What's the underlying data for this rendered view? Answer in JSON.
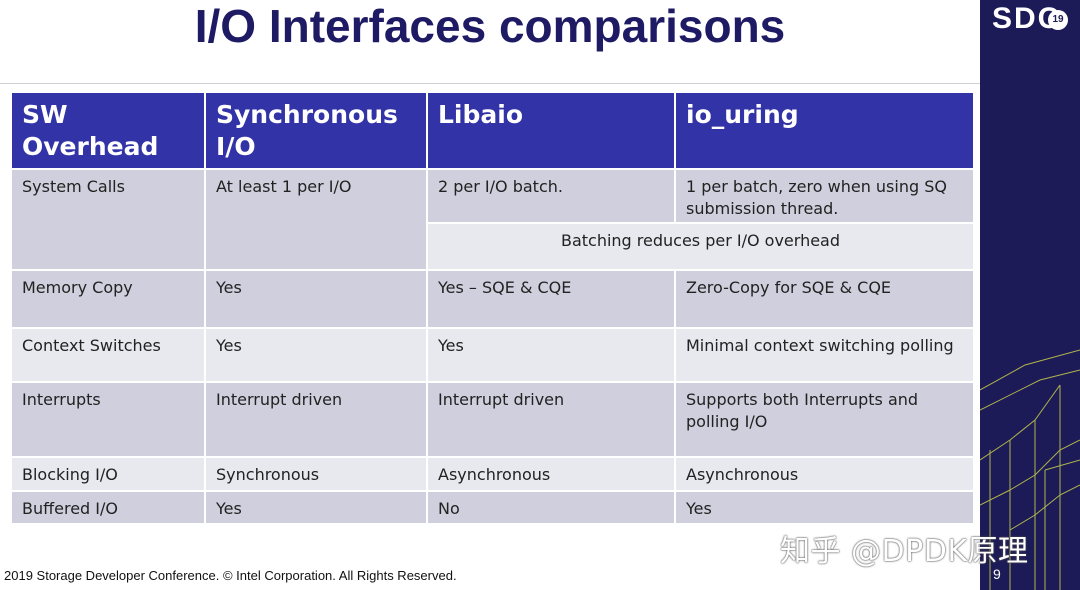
{
  "slide": {
    "title": "I/O Interfaces comparisons",
    "footer": "2019 Storage Developer Conference. © Intel Corporation.  All Rights Reserved.",
    "page_number": "9",
    "logo_text": "SDC",
    "logo_badge": "19",
    "watermark": "知乎 @DPDK原理"
  },
  "colors": {
    "title": "#1e1a63",
    "header_bg": "#3333a8",
    "row_dark": "#cfcfdd",
    "row_light": "#e8e8ef",
    "side_panel": "#1d1b57"
  },
  "table": {
    "headers": [
      "SW Overhead",
      "Synchronous I/O",
      "Libaio",
      "io_uring"
    ],
    "system_calls": {
      "label": "System Calls",
      "sync": "At least 1 per I/O",
      "libaio": "2 per I/O batch.",
      "io_uring": "1 per batch, zero when using SQ submission thread.",
      "merged_note": "Batching reduces per I/O overhead"
    },
    "memory_copy": {
      "label": "Memory Copy",
      "sync": "Yes",
      "libaio": "Yes – SQE & CQE",
      "io_uring": "Zero-Copy for SQE & CQE"
    },
    "context_switches": {
      "label": "Context Switches",
      "sync": "Yes",
      "libaio": "Yes",
      "io_uring": "Minimal context switching polling"
    },
    "interrupts": {
      "label": "Interrupts",
      "sync": "Interrupt driven",
      "libaio": "Interrupt driven",
      "io_uring": "Supports both Interrupts and polling I/O"
    },
    "blocking_io": {
      "label": "Blocking I/O",
      "sync": "Synchronous",
      "libaio": "Asynchronous",
      "io_uring": "Asynchronous"
    },
    "buffered_io": {
      "label": "Buffered I/O",
      "sync": "Yes",
      "libaio": "No",
      "io_uring": "Yes"
    }
  }
}
